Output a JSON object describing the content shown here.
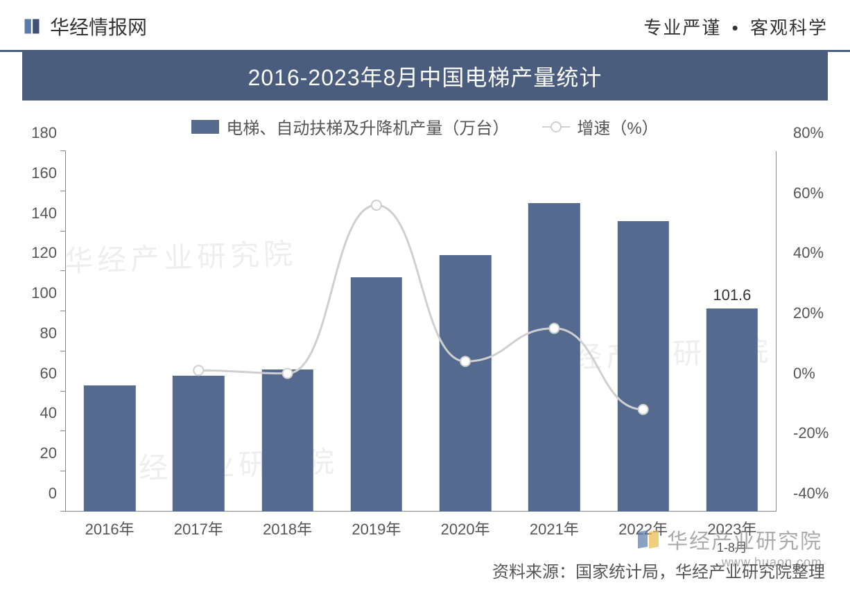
{
  "header": {
    "site_name": "华经情报网",
    "tagline_left": "专业严谨",
    "tagline_sep": "•",
    "tagline_right": "客观科学"
  },
  "title": "2016-2023年8月中国电梯产量统计",
  "legend": {
    "bar_label": "电梯、自动扶梯及升降机产量（万台）",
    "line_label": "增速（%）"
  },
  "colors": {
    "bar_fill": "#556a8f",
    "line_stroke": "#cfcfcf",
    "marker_fill": "#ffffff",
    "axis": "#888888",
    "text": "#555555",
    "title_bg": "#4a5d7e",
    "title_fg": "#ffffff"
  },
  "y_left": {
    "min": 0,
    "max": 180,
    "step": 20,
    "ticks": [
      0,
      20,
      40,
      60,
      80,
      100,
      120,
      140,
      160,
      180
    ]
  },
  "y_right": {
    "min": -40,
    "max": 80,
    "step": 20,
    "ticks": [
      -40,
      -20,
      0,
      20,
      40,
      60,
      80
    ],
    "suffix": "%"
  },
  "categories": [
    {
      "label": "2016年"
    },
    {
      "label": "2017年"
    },
    {
      "label": "2018年"
    },
    {
      "label": "2019年"
    },
    {
      "label": "2020年"
    },
    {
      "label": "2021年"
    },
    {
      "label": "2022年"
    },
    {
      "label": "2023年",
      "sub": "1-8月"
    }
  ],
  "bar_values": [
    63,
    68,
    71,
    117,
    128,
    154,
    145,
    101.6
  ],
  "bar_value_labels": [
    null,
    null,
    null,
    null,
    null,
    null,
    null,
    "101.6"
  ],
  "line_values": [
    null,
    7,
    6,
    62,
    10,
    21,
    -6,
    null
  ],
  "line_style": {
    "width": 3,
    "marker_radius": 7
  },
  "source": "资料来源：国家统计局，华经产业研究院整理",
  "watermark": {
    "text": "华经产业研究院",
    "url": "www.huaon.com"
  }
}
